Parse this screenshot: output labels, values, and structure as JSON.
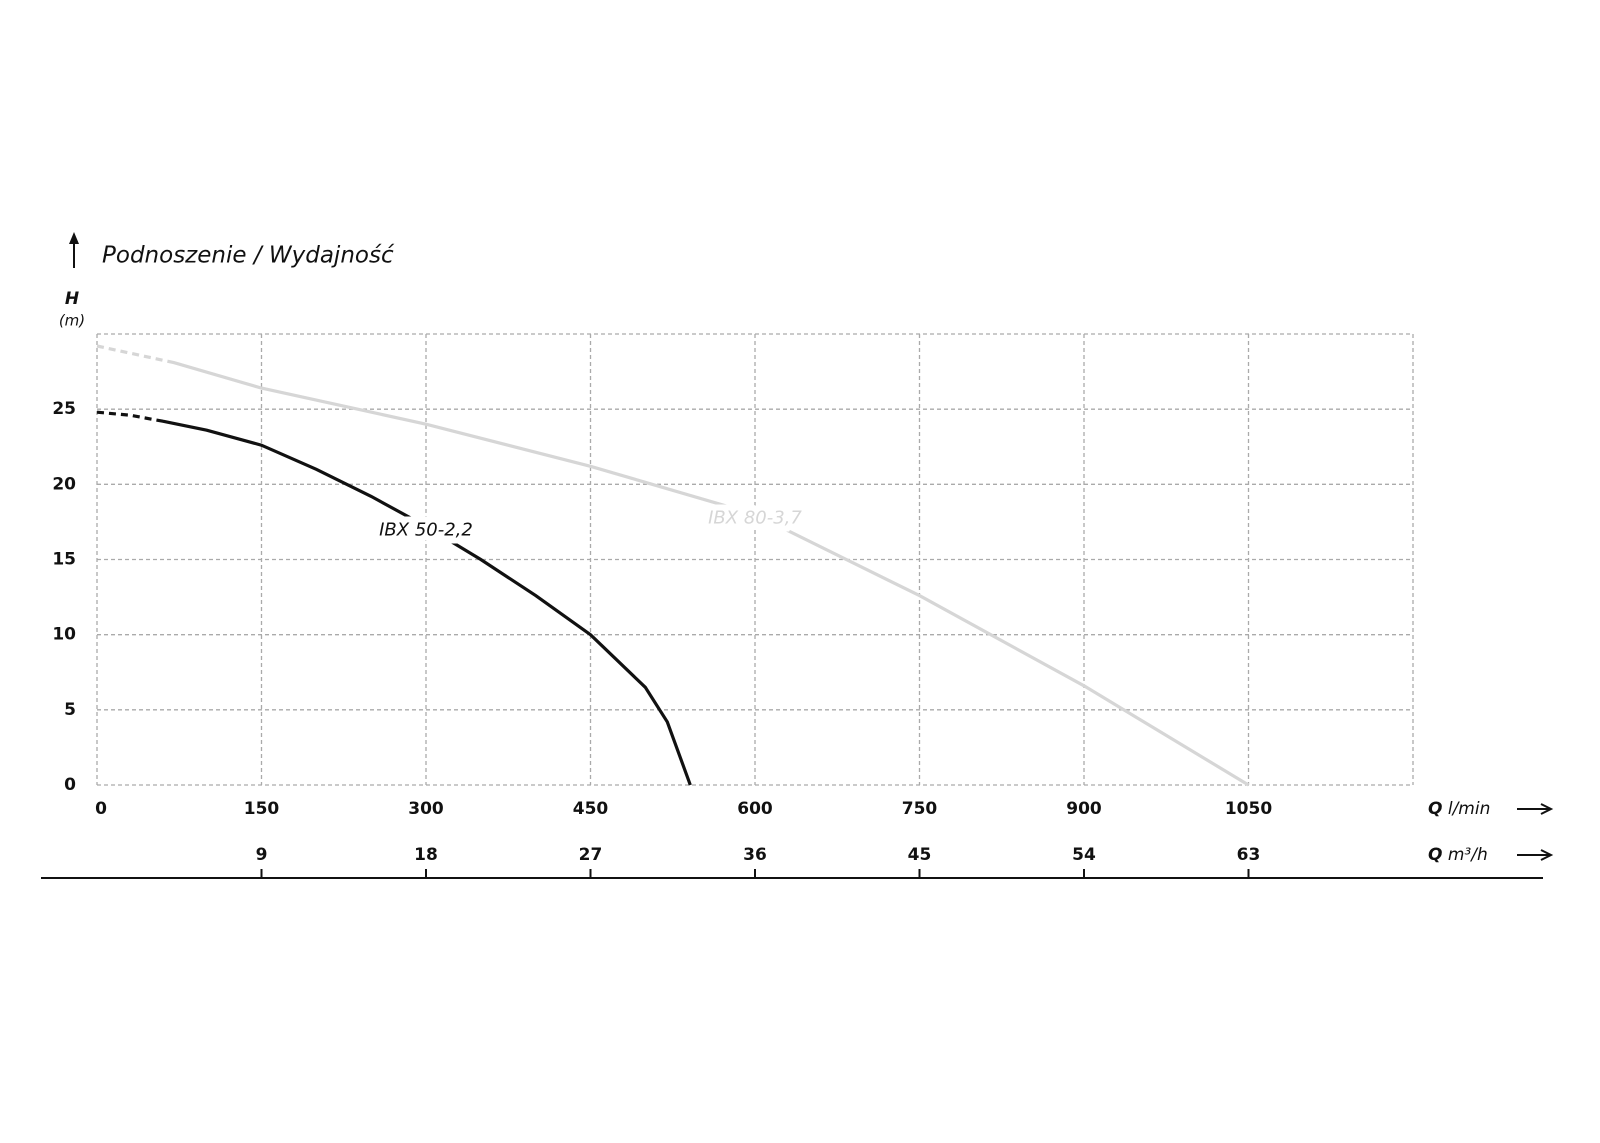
{
  "chart_data": {
    "type": "line",
    "title": "Podnoszenie / Wydajność",
    "y_label": {
      "symbol": "H",
      "unit": "(m)"
    },
    "x_label": {
      "symbol": "Q",
      "unit": "l/min"
    },
    "x2_label": {
      "symbol": "Q",
      "unit": "m³/h"
    },
    "xlim": [
      0,
      1200
    ],
    "xticks": [
      0,
      150,
      300,
      450,
      600,
      750,
      900,
      1050
    ],
    "x2lim": [
      0,
      72
    ],
    "x2ticks": [
      9,
      18,
      27,
      36,
      45,
      54,
      63
    ],
    "ylim": [
      0,
      30
    ],
    "yticks": [
      0,
      5,
      10,
      15,
      20,
      25
    ],
    "grid": true,
    "series": [
      {
        "name": "IBX 50-2,2",
        "color": "#111111",
        "dashed_to_x": 60,
        "x": [
          0,
          30,
          60,
          100,
          150,
          200,
          250,
          300,
          350,
          400,
          450,
          500,
          520,
          541
        ],
        "values": [
          24.8,
          24.6,
          24.2,
          23.6,
          22.6,
          21.0,
          19.2,
          17.2,
          15.0,
          12.6,
          10.0,
          6.5,
          4.2,
          0
        ]
      },
      {
        "name": "IBX 80-3,7",
        "color": "#d6d6d6",
        "dashed_to_x": 70,
        "x": [
          0,
          70,
          150,
          300,
          450,
          600,
          750,
          900,
          1050
        ],
        "values": [
          29.2,
          28.1,
          26.4,
          24.0,
          21.2,
          18.0,
          12.6,
          6.6,
          0
        ]
      }
    ]
  }
}
